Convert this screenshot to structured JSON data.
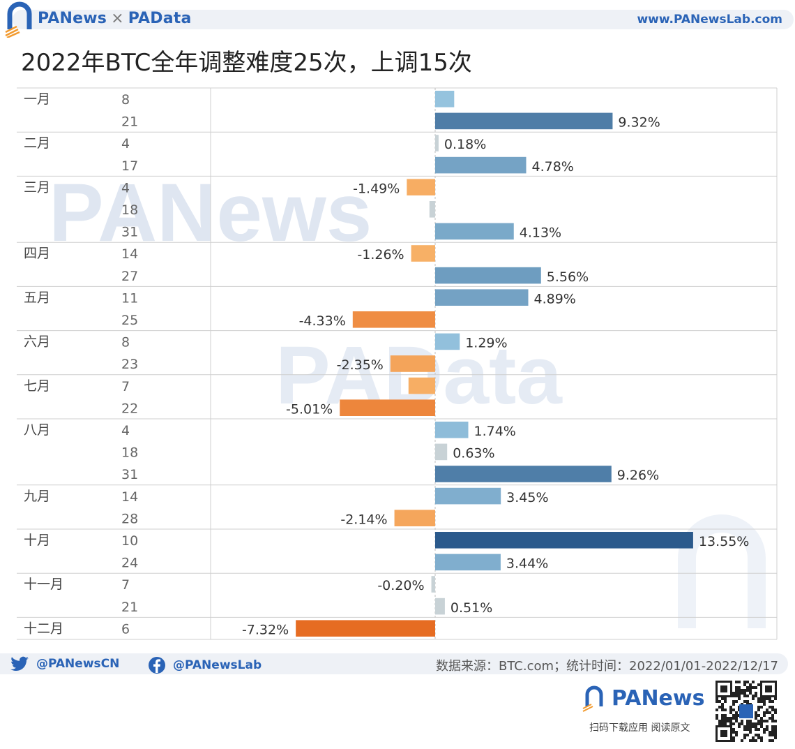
{
  "header": {
    "brand_left": "PANews",
    "brand_sep": "×",
    "brand_right": "PAData",
    "site": "www.PANewsLab.com"
  },
  "title": "2022年BTC全年调整难度25次，上调15次",
  "colors": {
    "brand_blue": "#2a63b6",
    "positive_dark": "#2b5a8c",
    "positive_light": "#9dcbe4",
    "negative_dark": "#e66c22",
    "negative_light": "#fbbe74",
    "near_zero": "#c8d2d6",
    "grid": "#cfcfcf"
  },
  "watermarks": [
    "PANews",
    "PAData"
  ],
  "chart_data": {
    "type": "bar",
    "orientation": "horizontal",
    "unit": "%",
    "months": [
      {
        "label": "一月",
        "entries": [
          {
            "day": "8",
            "value": 1.0,
            "label": ""
          },
          {
            "day": "21",
            "value": 9.32,
            "label": "9.32%"
          }
        ]
      },
      {
        "label": "二月",
        "entries": [
          {
            "day": "4",
            "value": 0.18,
            "label": "0.18%"
          },
          {
            "day": "17",
            "value": 4.78,
            "label": "4.78%"
          }
        ]
      },
      {
        "label": "三月",
        "entries": [
          {
            "day": "4",
            "value": -1.49,
            "label": "-1.49%"
          },
          {
            "day": "18",
            "value": -0.3,
            "label": ""
          },
          {
            "day": "31",
            "value": 4.13,
            "label": "4.13%"
          }
        ]
      },
      {
        "label": "四月",
        "entries": [
          {
            "day": "14",
            "value": -1.26,
            "label": "-1.26%"
          },
          {
            "day": "27",
            "value": 5.56,
            "label": "5.56%"
          }
        ]
      },
      {
        "label": "五月",
        "entries": [
          {
            "day": "11",
            "value": 4.89,
            "label": "4.89%"
          },
          {
            "day": "25",
            "value": -4.33,
            "label": "-4.33%"
          }
        ]
      },
      {
        "label": "六月",
        "entries": [
          {
            "day": "8",
            "value": 1.29,
            "label": "1.29%"
          },
          {
            "day": "23",
            "value": -2.35,
            "label": "-2.35%"
          }
        ]
      },
      {
        "label": "七月",
        "entries": [
          {
            "day": "7",
            "value": -1.4,
            "label": ""
          },
          {
            "day": "22",
            "value": -5.01,
            "label": "-5.01%"
          }
        ]
      },
      {
        "label": "八月",
        "entries": [
          {
            "day": "4",
            "value": 1.74,
            "label": "1.74%"
          },
          {
            "day": "18",
            "value": 0.63,
            "label": "0.63%"
          },
          {
            "day": "31",
            "value": 9.26,
            "label": "9.26%"
          }
        ]
      },
      {
        "label": "九月",
        "entries": [
          {
            "day": "14",
            "value": 3.45,
            "label": "3.45%"
          },
          {
            "day": "28",
            "value": -2.14,
            "label": "-2.14%"
          }
        ]
      },
      {
        "label": "十月",
        "entries": [
          {
            "day": "10",
            "value": 13.55,
            "label": "13.55%"
          },
          {
            "day": "24",
            "value": 3.44,
            "label": "3.44%"
          }
        ]
      },
      {
        "label": "十一月",
        "entries": [
          {
            "day": "7",
            "value": -0.2,
            "label": "-0.20%"
          },
          {
            "day": "21",
            "value": 0.51,
            "label": "0.51%"
          }
        ]
      },
      {
        "label": "十二月",
        "entries": [
          {
            "day": "6",
            "value": -7.32,
            "label": "-7.32%"
          }
        ]
      }
    ]
  },
  "footer": {
    "twitter": "@PANewsCN",
    "facebook": "@PANewsLab",
    "source": "数据来源：BTC.com；统计时间：2022/01/01-2022/12/17",
    "logo": "PANews",
    "slogan": "扫码下载应用 阅读原文"
  }
}
